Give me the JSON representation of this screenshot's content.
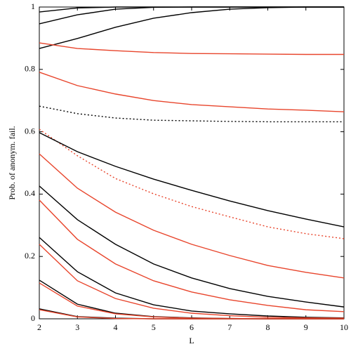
{
  "chart_data": {
    "type": "line",
    "x_label": "L",
    "y_label": "Prob. of anonym. fail.",
    "x": [
      2,
      3,
      4,
      5,
      6,
      7,
      8,
      9,
      10
    ],
    "xlim": [
      2,
      10
    ],
    "xticks": [
      2,
      3,
      4,
      5,
      6,
      7,
      8,
      9,
      10
    ],
    "ylim": [
      0,
      1
    ],
    "yticks": [
      0,
      0.2,
      0.4,
      0.6,
      0.8,
      1
    ],
    "series": [
      {
        "color": "#000000",
        "dash": "solid",
        "values": [
          0.984,
          0.997,
          1,
          1,
          1,
          1,
          1,
          1,
          1
        ]
      },
      {
        "color": "#000000",
        "dash": "solid",
        "values": [
          0.946,
          0.975,
          0.993,
          0.999,
          1,
          1,
          1,
          1,
          1
        ]
      },
      {
        "color": "#000000",
        "dash": "solid",
        "values": [
          0.867,
          0.899,
          0.935,
          0.964,
          0.982,
          0.993,
          0.998,
          1,
          1
        ]
      },
      {
        "color": "#e8452c",
        "dash": "solid",
        "values": [
          0.885,
          0.867,
          0.86,
          0.854,
          0.851,
          0.85,
          0.849,
          0.848,
          0.848
        ]
      },
      {
        "color": "#e8452c",
        "dash": "solid",
        "values": [
          0.791,
          0.748,
          0.721,
          0.7,
          0.687,
          0.68,
          0.673,
          0.669,
          0.664
        ]
      },
      {
        "color": "#000000",
        "dash": "dotted",
        "values": [
          0.682,
          0.658,
          0.644,
          0.637,
          0.635,
          0.633,
          0.632,
          0.632,
          0.632
        ]
      },
      {
        "color": "#e8452c",
        "dash": "dotted",
        "values": [
          0.608,
          0.523,
          0.45,
          0.401,
          0.36,
          0.327,
          0.295,
          0.273,
          0.257
        ]
      },
      {
        "color": "#000000",
        "dash": "solid",
        "values": [
          0.597,
          0.536,
          0.489,
          0.448,
          0.412,
          0.378,
          0.347,
          0.32,
          0.295
        ]
      },
      {
        "color": "#e8452c",
        "dash": "solid",
        "values": [
          0.529,
          0.419,
          0.342,
          0.284,
          0.239,
          0.203,
          0.171,
          0.149,
          0.131
        ]
      },
      {
        "color": "#000000",
        "dash": "solid",
        "values": [
          0.426,
          0.318,
          0.239,
          0.176,
          0.131,
          0.097,
          0.072,
          0.054,
          0.038
        ]
      },
      {
        "color": "#e8452c",
        "dash": "solid",
        "values": [
          0.381,
          0.255,
          0.176,
          0.122,
          0.086,
          0.061,
          0.043,
          0.029,
          0.023
        ]
      },
      {
        "color": "#000000",
        "dash": "solid",
        "values": [
          0.261,
          0.151,
          0.083,
          0.045,
          0.025,
          0.016,
          0.009,
          0.005,
          0.003
        ]
      },
      {
        "color": "#e8452c",
        "dash": "solid",
        "values": [
          0.239,
          0.122,
          0.065,
          0.034,
          0.018,
          0.01,
          0.005,
          0.003,
          0.002
        ]
      },
      {
        "color": "#000000",
        "dash": "solid",
        "values": [
          0.124,
          0.047,
          0.018,
          0.007,
          0.003,
          0.001,
          0,
          0,
          0
        ]
      },
      {
        "color": "#e8452c",
        "dash": "solid",
        "values": [
          0.115,
          0.041,
          0.016,
          0.006,
          0.002,
          0.001,
          0,
          0,
          0
        ]
      },
      {
        "color": "#000000",
        "dash": "solid",
        "values": [
          0.032,
          0.007,
          0.002,
          0,
          0,
          0,
          0,
          0,
          0
        ]
      },
      {
        "color": "#e8452c",
        "dash": "solid",
        "values": [
          0.029,
          0.006,
          0.001,
          0,
          0,
          0,
          0,
          0,
          0
        ]
      }
    ]
  }
}
